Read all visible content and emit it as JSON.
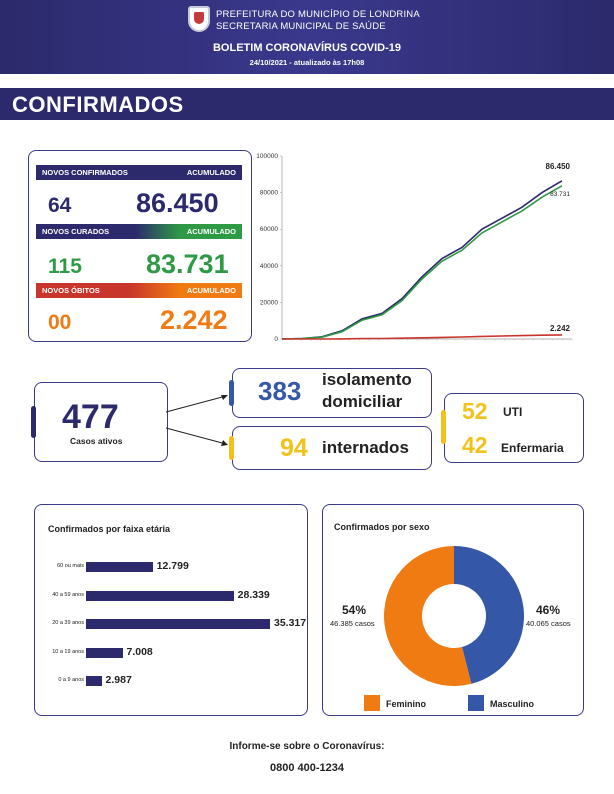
{
  "header": {
    "line1": "PREFEITURA DO MUNICÍPIO DE LONDRINA",
    "line2": "SECRETARIA MUNICIPAL DE SAÚDE",
    "title": "BOLETIM CORONAVÍRUS COVID-19",
    "date": "24/10/2021 - atualizado às 17h08"
  },
  "section_title": "CONFIRMADOS",
  "summary": {
    "confirmed_label": "NOVOS CONFIRMADOS",
    "confirmed_acc_label": "ACUMULADO",
    "confirmed_new": "64",
    "confirmed_acc": "86.450",
    "cured_label": "NOVOS CURADOS",
    "cured_acc_label": "ACUMULADO",
    "cured_new": "115",
    "cured_acc": "83.731",
    "deaths_label": "NOVOS ÓBITOS",
    "deaths_acc_label": "ACUMULADO",
    "deaths_new": "00",
    "deaths_acc": "2.242"
  },
  "colors": {
    "navy": "#2c2a6c",
    "green": "#2e9a45",
    "orange": "#f07b12",
    "red": "#c8352a",
    "yellow": "#f2c21b",
    "blue": "#3557a8"
  },
  "chart_data": [
    {
      "type": "line",
      "ylim": [
        0,
        100000
      ],
      "yticks": [
        "100000",
        "80000",
        "60000",
        "40000",
        "20000",
        "0"
      ],
      "series": [
        {
          "color": "#2c2a6c",
          "values": [
            0,
            300,
            1200,
            4500,
            11000,
            14000,
            22000,
            34000,
            44000,
            50000,
            60000,
            66000,
            72000,
            80000,
            86450
          ]
        },
        {
          "color": "#2e9a45",
          "values": [
            0,
            250,
            1000,
            4000,
            10300,
            13200,
            21000,
            32800,
            42500,
            48500,
            58000,
            64000,
            70000,
            77500,
            83731
          ]
        },
        {
          "color": "#c8352a",
          "values": [
            0,
            5,
            20,
            80,
            200,
            280,
            420,
            650,
            900,
            1100,
            1400,
            1650,
            1850,
            2050,
            2242
          ]
        }
      ],
      "end_labels": [
        "86.450",
        "83.731",
        "2.242"
      ]
    },
    {
      "type": "bar",
      "title": "Confirmados por faixa etária",
      "categories": [
        "60 ou mais",
        "40 a 59 anos",
        "20 a 39 anos",
        "10 a 19 anos",
        "0 a 9 anos"
      ],
      "values": [
        12799,
        28339,
        35317,
        7008,
        2987
      ],
      "labels": [
        "12.799",
        "28.339",
        "35.317",
        "7.008",
        "2.987"
      ]
    },
    {
      "type": "pie",
      "title": "Confirmados por sexo",
      "slices": [
        {
          "name": "Feminino",
          "value": 54,
          "pct": "54%",
          "cases": "46.385 casos",
          "color": "#f07b12"
        },
        {
          "name": "Masculino",
          "value": 46,
          "pct": "46%",
          "cases": "40.065 casos",
          "color": "#3557a8"
        }
      ]
    }
  ],
  "active": {
    "value": "477",
    "label": "Casos ativos",
    "isolation_value": "383",
    "isolation_label_1": "isolamento",
    "isolation_label_2": "domiciliar",
    "hosp_value": "94",
    "hosp_label": "internados",
    "uti_value": "52",
    "uti_label": "UTI",
    "enf_value": "42",
    "enf_label": "Enfermaria"
  },
  "footer": {
    "line1": "Informe-se sobre o Coronavírus:",
    "line2": "0800 400-1234"
  }
}
